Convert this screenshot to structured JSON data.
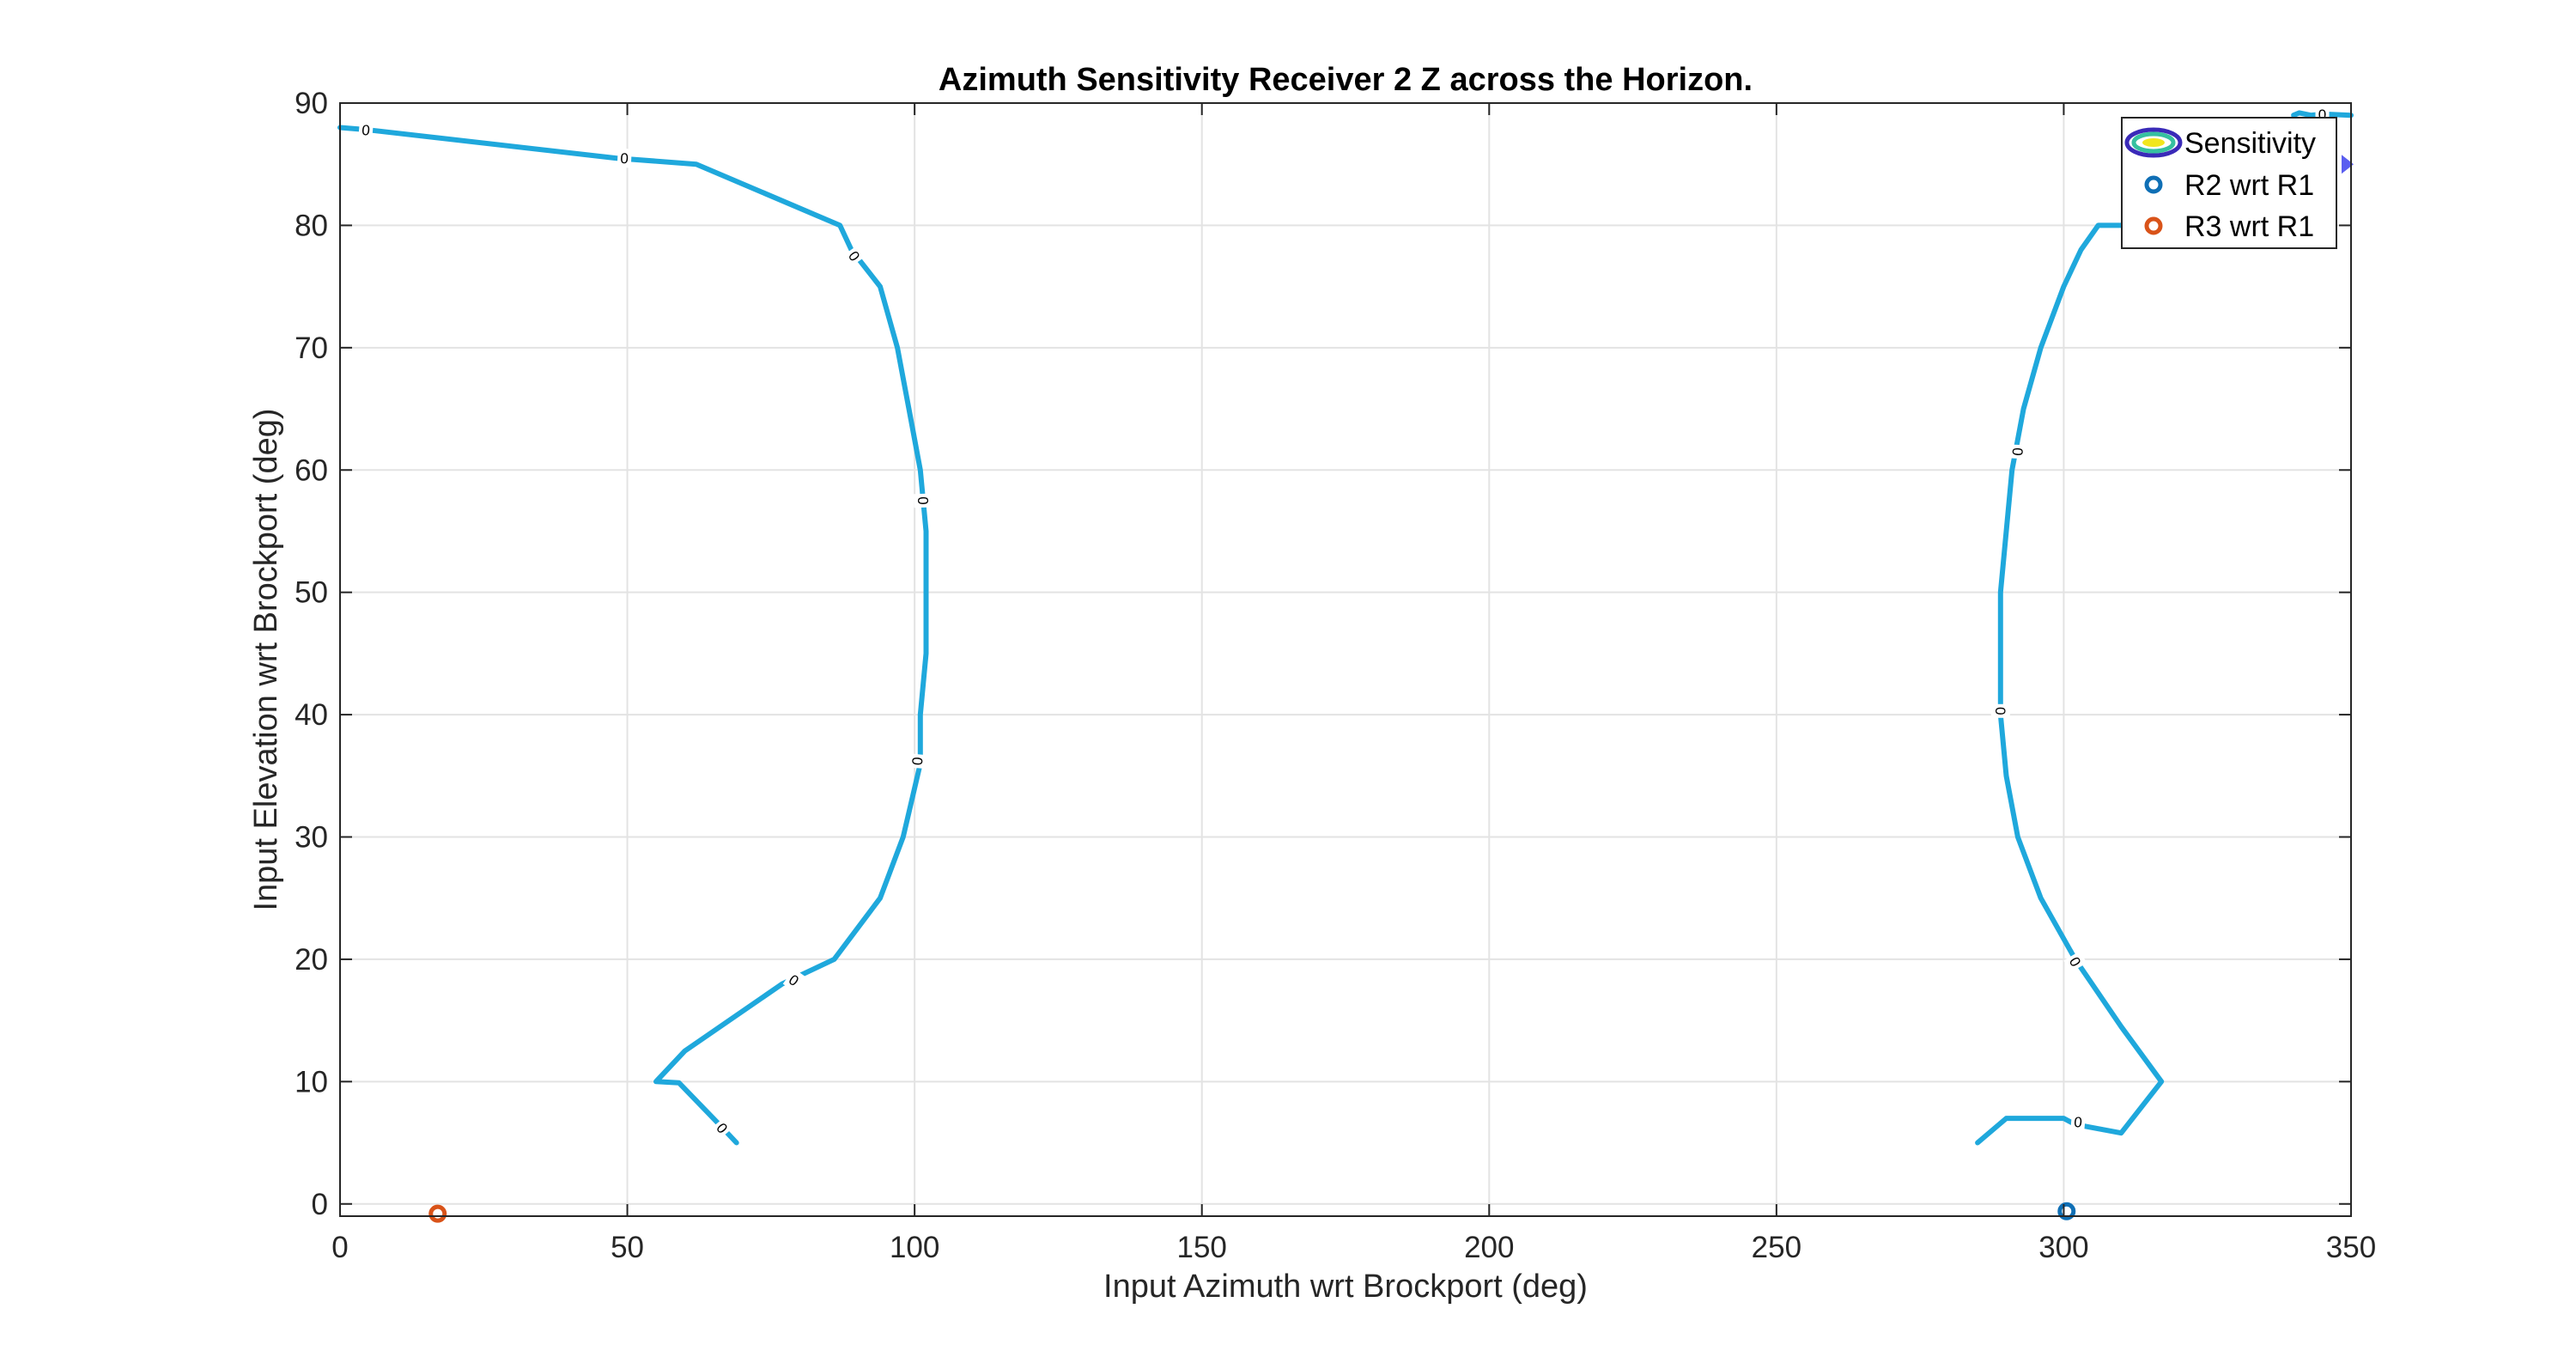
{
  "chart_data": {
    "type": "contour",
    "title": "Azimuth Sensitivity Receiver 2 Z across the Horizon.",
    "xlabel": "Input Azimuth wrt Brockport (deg)",
    "ylabel": "Input Elevation wrt Brockport (deg)",
    "xlim": [
      0,
      350
    ],
    "ylim": [
      -1,
      90
    ],
    "xticks": [
      0,
      50,
      100,
      150,
      200,
      250,
      300,
      350
    ],
    "yticks": [
      0,
      10,
      20,
      30,
      40,
      50,
      60,
      70,
      80,
      90
    ],
    "grid": true,
    "legend_position": "top-right",
    "contour_level": "0",
    "colors": {
      "contour": "#1fa8dc",
      "contour_top_right": "#1fa8dc",
      "arrow_marker": "#5a5ef0",
      "r2": "#0f6fb5",
      "r3": "#d95319",
      "legend_outer": "#3a2ab8",
      "legend_inner": "#f2e61e",
      "legend_mid": "#36c0a0",
      "grid": "#e3e3e3",
      "axis": "#262626"
    },
    "contours": [
      {
        "name": "left",
        "x": [
          0,
          5,
          48,
          62,
          87,
          89,
          94,
          97,
          99,
          101,
          102,
          102,
          102,
          101,
          101,
          99,
          98,
          94,
          86,
          77,
          60,
          55,
          59,
          66,
          69
        ],
        "y": [
          88,
          87.8,
          85.5,
          85,
          80,
          78,
          75,
          70,
          65,
          60,
          55,
          50,
          45,
          40,
          36,
          32,
          30,
          25,
          20,
          18,
          12.5,
          10,
          9.9,
          6.5,
          5
        ]
      },
      {
        "name": "right",
        "x": [
          285,
          290,
          300,
          302,
          310,
          317,
          310,
          302,
          296,
          292,
          290,
          289,
          289,
          289,
          290,
          291,
          293,
          296,
          300,
          303,
          306,
          310
        ],
        "y": [
          5,
          7,
          7,
          6.5,
          5.8,
          10,
          14.5,
          20,
          25,
          30,
          35,
          40,
          45,
          50,
          55,
          60,
          65,
          70,
          75,
          78,
          80,
          80
        ]
      },
      {
        "name": "top-right",
        "x": [
          340,
          341,
          343,
          345,
          350
        ],
        "y": [
          89,
          89.2,
          89,
          89.1,
          89
        ]
      }
    ],
    "contour_labels": [
      {
        "text": "0",
        "x": 4.5,
        "y": 87.8,
        "angle": 5
      },
      {
        "text": "0",
        "x": 49.5,
        "y": 85.5,
        "angle": 3
      },
      {
        "text": "0",
        "x": 89.5,
        "y": 77.5,
        "angle": 55
      },
      {
        "text": "0",
        "x": 101.5,
        "y": 57.5,
        "angle": 88
      },
      {
        "text": "0",
        "x": 100.5,
        "y": 36.2,
        "angle": 95
      },
      {
        "text": "0",
        "x": 79,
        "y": 18.3,
        "angle": 35
      },
      {
        "text": "0",
        "x": 66.5,
        "y": 6.2,
        "angle": 50
      },
      {
        "text": "0",
        "x": 292,
        "y": 61.5,
        "angle": 93
      },
      {
        "text": "0",
        "x": 289,
        "y": 40.3,
        "angle": 90
      },
      {
        "text": "0",
        "x": 302,
        "y": 19.8,
        "angle": 60
      },
      {
        "text": "0",
        "x": 302.5,
        "y": 6.7,
        "angle": 5
      },
      {
        "text": "0",
        "x": 345,
        "y": 89.1,
        "angle": 0
      }
    ],
    "series": [
      {
        "name": "R2 wrt R1",
        "x": [
          300.5
        ],
        "y": [
          -0.6
        ]
      },
      {
        "name": "R3 wrt R1",
        "x": [
          17
        ],
        "y": [
          -0.8
        ]
      }
    ],
    "arrow_marker": {
      "x": 350,
      "y": 85
    },
    "legend": [
      "Sensitivity",
      "R2 wrt R1",
      "R3 wrt R1"
    ]
  }
}
